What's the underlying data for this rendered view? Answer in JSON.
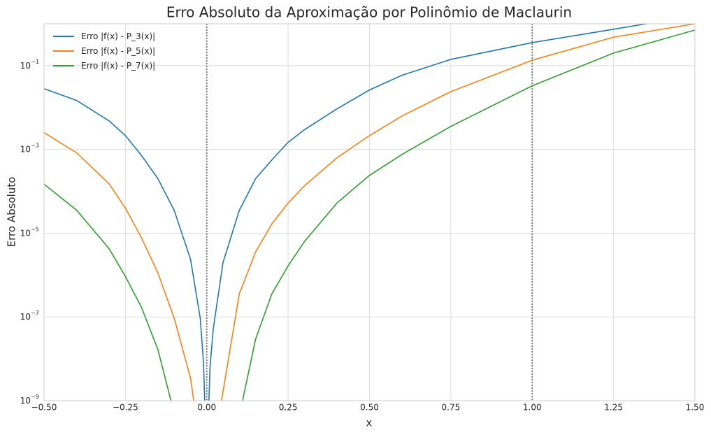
{
  "chart_data": {
    "type": "line",
    "title": "Erro Absoluto da Aproximação por Polinômio de Maclaurin",
    "xlabel": "x",
    "ylabel": "Erro Absoluto",
    "log_y": true,
    "grid": true,
    "legend": "upper left",
    "xlim": [
      -0.5,
      1.5
    ],
    "ylim": [
      1e-09,
      1
    ],
    "xticks": [
      {
        "value": -0.5,
        "label": "−0.50"
      },
      {
        "value": -0.25,
        "label": "−0.25"
      },
      {
        "value": 0,
        "label": "0.00"
      },
      {
        "value": 0.25,
        "label": "0.25"
      },
      {
        "value": 0.5,
        "label": "0.50"
      },
      {
        "value": 0.75,
        "label": "0.75"
      },
      {
        "value": 1,
        "label": "1.00"
      },
      {
        "value": 1.25,
        "label": "1.25"
      },
      {
        "value": 1.5,
        "label": "1.50"
      }
    ],
    "yticks": [
      {
        "value": 1e-09,
        "label": "10",
        "exponent": "−9"
      },
      {
        "value": 1e-07,
        "label": "10",
        "exponent": "−7"
      },
      {
        "value": 1e-05,
        "label": "10",
        "exponent": "−5"
      },
      {
        "value": 0.001,
        "label": "10",
        "exponent": "−3"
      },
      {
        "value": 0.1,
        "label": "10",
        "exponent": "−1"
      }
    ],
    "vlines": [
      0,
      1
    ],
    "vline_color": "#808080",
    "series": [
      {
        "name": "Erro |f(x) - P_3(x)|",
        "color": "#1f77b4",
        "x": [
          -0.5,
          -0.4,
          -0.3,
          -0.25,
          -0.2,
          -0.15,
          -0.1,
          -0.05,
          -0.02,
          -0.01,
          -0.005,
          0.005,
          0.01,
          0.02,
          0.05,
          0.1,
          0.15,
          0.2,
          0.25,
          0.3,
          0.4,
          0.5,
          0.6,
          0.75,
          1.0,
          1.25,
          1.35,
          1.5
        ],
        "values": [
          0.0282,
          0.0148,
          0.00479,
          0.00214,
          0.000708,
          0.0002,
          3.5e-05,
          2.4e-06,
          9.3e-08,
          7.9e-09,
          5e-10,
          4e-10,
          6.3e-09,
          5.2e-08,
          2e-06,
          3.5e-05,
          0.0002,
          0.00056,
          0.00148,
          0.00295,
          0.0093,
          0.0263,
          0.0589,
          0.141,
          0.355,
          0.741,
          1.0,
          1.4
        ]
      },
      {
        "name": "Erro |f(x) - P_5(x)|",
        "color": "#ff7f0e",
        "x": [
          -0.5,
          -0.4,
          -0.3,
          -0.25,
          -0.2,
          -0.15,
          -0.1,
          -0.05,
          -0.04,
          -0.03,
          0.04,
          0.05,
          0.1,
          0.15,
          0.2,
          0.25,
          0.3,
          0.4,
          0.5,
          0.6,
          0.75,
          1.0,
          1.25,
          1.5
        ],
        "values": [
          0.00251,
          0.000832,
          0.000151,
          3.98e-05,
          7.59e-06,
          1.12e-06,
          9.3e-08,
          3.5e-09,
          1e-09,
          3e-10,
          6e-10,
          1.66e-09,
          3.55e-07,
          3.55e-06,
          1.66e-05,
          5.25e-05,
          0.000135,
          0.00063,
          0.00214,
          0.0063,
          0.024,
          0.135,
          0.479,
          1.0
        ]
      },
      {
        "name": "Erro |f(x) - P_7(x)|",
        "color": "#2ca02c",
        "x": [
          -0.5,
          -0.4,
          -0.3,
          -0.25,
          -0.2,
          -0.15,
          -0.11,
          -0.09,
          0.09,
          0.11,
          0.15,
          0.2,
          0.25,
          0.3,
          0.4,
          0.5,
          0.6,
          0.75,
          1.0,
          1.25,
          1.5
        ],
        "values": [
          0.000148,
          3.55e-05,
          4.27e-06,
          9.3e-07,
          1.66e-07,
          1.66e-08,
          1e-09,
          1e-10,
          1e-10,
          1e-09,
          2.95e-08,
          3.55e-07,
          1.66e-06,
          6.3e-06,
          5.25e-05,
          0.00024,
          0.00076,
          0.00355,
          0.0331,
          0.2,
          0.708
        ]
      }
    ]
  }
}
